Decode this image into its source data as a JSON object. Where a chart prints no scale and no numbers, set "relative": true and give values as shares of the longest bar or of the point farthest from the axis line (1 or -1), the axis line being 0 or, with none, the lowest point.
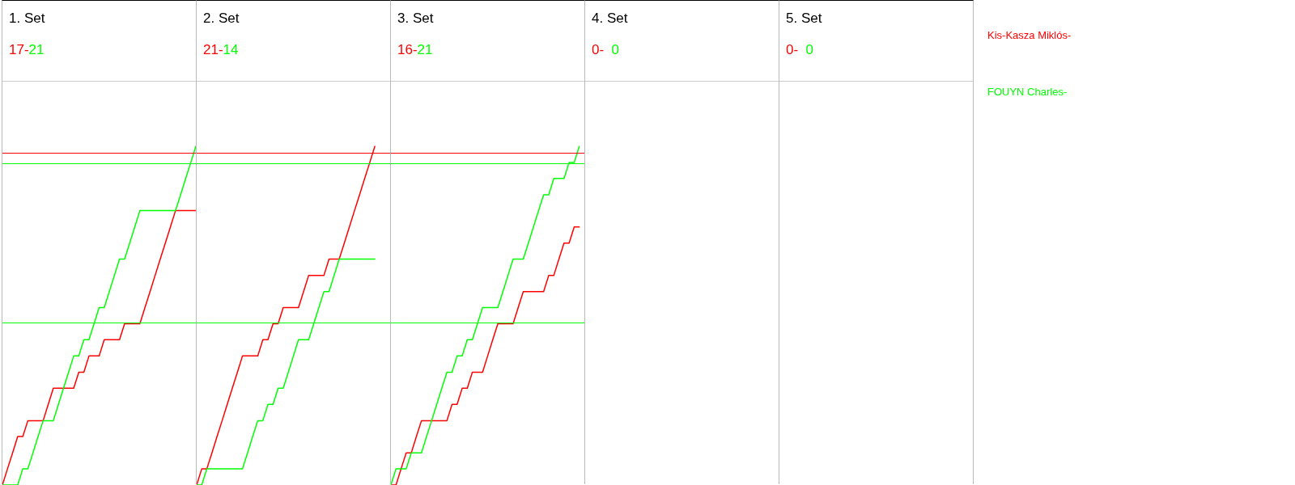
{
  "chart_data": [
    {
      "type": "line",
      "title": "1. Set",
      "subtitle": "17-21",
      "relative": true,
      "legend": "right",
      "categories": [
        null,
        null,
        null,
        null,
        null,
        null,
        null,
        null,
        null,
        null,
        null,
        null,
        null,
        null,
        null,
        null,
        null,
        null,
        null,
        null,
        null,
        null,
        null,
        null,
        null,
        null,
        null,
        null,
        null,
        null,
        null,
        null,
        null,
        null,
        null,
        null,
        null,
        null,
        null
      ],
      "series": [
        {
          "name": "Kis-Kasza Miklós-",
          "color": "#ff0000",
          "values": [
            0,
            0.048,
            0.095,
            0.143,
            0.143,
            0.19,
            0.19,
            0.19,
            0.19,
            0.238,
            0.286,
            0.286,
            0.286,
            0.286,
            0.286,
            0.333,
            0.333,
            0.381,
            0.381,
            0.381,
            0.429,
            0.429,
            0.429,
            0.429,
            0.476,
            0.476,
            0.476,
            0.476,
            0.524,
            0.571,
            0.619,
            0.667,
            0.714,
            0.762,
            0.81,
            0.81,
            0.81,
            0.81,
            0.81
          ]
        },
        {
          "name": "FOUYN Charles-",
          "color": "#00ff00",
          "values": [
            0,
            0,
            0,
            0,
            0.048,
            0.048,
            0.095,
            0.143,
            0.19,
            0.19,
            0.19,
            0.238,
            0.286,
            0.333,
            0.381,
            0.381,
            0.429,
            0.429,
            0.476,
            0.524,
            0.524,
            0.571,
            0.619,
            0.667,
            0.667,
            0.714,
            0.762,
            0.81,
            0.81,
            0.81,
            0.81,
            0.81,
            0.81,
            0.81,
            0.81,
            0.857,
            0.905,
            0.952,
            1
          ]
        }
      ],
      "ref_lines": [
        {
          "axis": "y",
          "value": 0.98,
          "color": "#ff0000"
        },
        {
          "axis": "y",
          "value": 0.952,
          "color": "#00ff00"
        },
        {
          "axis": "y",
          "value": 0.476,
          "color": "#00ff00"
        }
      ]
    },
    {
      "type": "line",
      "title": "2. Set",
      "subtitle": "21-14",
      "relative": true,
      "categories": [
        null,
        null,
        null,
        null,
        null,
        null,
        null,
        null,
        null,
        null,
        null,
        null,
        null,
        null,
        null,
        null,
        null,
        null,
        null,
        null,
        null,
        null,
        null,
        null,
        null,
        null,
        null,
        null,
        null,
        null,
        null,
        null,
        null,
        null,
        null,
        null,
        null,
        null,
        null
      ],
      "series": [
        {
          "color": "#ff0000",
          "values": [
            0,
            0.048,
            0.048,
            0.095,
            0.143,
            0.19,
            0.238,
            0.286,
            0.333,
            0.381,
            0.381,
            0.381,
            0.381,
            0.429,
            0.429,
            0.476,
            0.476,
            0.524,
            0.524,
            0.524,
            0.524,
            0.571,
            0.619,
            0.619,
            0.619,
            0.619,
            0.667,
            0.667,
            0.667,
            0.714,
            0.762,
            0.81,
            0.857,
            0.905,
            0.952,
            1,
            null,
            null,
            null
          ]
        },
        {
          "color": "#00ff00",
          "values": [
            0,
            0,
            0.048,
            0.048,
            0.048,
            0.048,
            0.048,
            0.048,
            0.048,
            0.048,
            0.095,
            0.143,
            0.19,
            0.19,
            0.238,
            0.238,
            0.286,
            0.286,
            0.333,
            0.381,
            0.429,
            0.429,
            0.429,
            0.476,
            0.524,
            0.571,
            0.571,
            0.619,
            0.667,
            0.667,
            0.667,
            0.667,
            0.667,
            0.667,
            0.667,
            0.667,
            null,
            null,
            null
          ]
        }
      ],
      "ref_lines": [
        {
          "axis": "y",
          "value": 0.98,
          "color": "#ff0000"
        },
        {
          "axis": "y",
          "value": 0.952,
          "color": "#00ff00"
        },
        {
          "axis": "y",
          "value": 0.476,
          "color": "#00ff00"
        }
      ]
    },
    {
      "type": "line",
      "title": "3. Set",
      "subtitle": "16-21",
      "relative": true,
      "categories": [
        null,
        null,
        null,
        null,
        null,
        null,
        null,
        null,
        null,
        null,
        null,
        null,
        null,
        null,
        null,
        null,
        null,
        null,
        null,
        null,
        null,
        null,
        null,
        null,
        null,
        null,
        null,
        null,
        null,
        null,
        null,
        null,
        null,
        null,
        null,
        null,
        null,
        null,
        null
      ],
      "series": [
        {
          "color": "#ff0000",
          "values": [
            0,
            0,
            0.048,
            0.095,
            0.095,
            0.143,
            0.19,
            0.19,
            0.19,
            0.19,
            0.19,
            0.19,
            0.238,
            0.238,
            0.286,
            0.286,
            0.333,
            0.333,
            0.333,
            0.381,
            0.429,
            0.476,
            0.476,
            0.476,
            0.476,
            0.524,
            0.571,
            0.571,
            0.571,
            0.571,
            0.571,
            0.619,
            0.619,
            0.667,
            0.714,
            0.714,
            0.762,
            0.762,
            null
          ]
        },
        {
          "color": "#00ff00",
          "values": [
            0,
            0.048,
            0.048,
            0.048,
            0.095,
            0.095,
            0.095,
            0.143,
            0.19,
            0.238,
            0.286,
            0.333,
            0.333,
            0.381,
            0.381,
            0.429,
            0.429,
            0.476,
            0.524,
            0.524,
            0.524,
            0.524,
            0.571,
            0.619,
            0.667,
            0.667,
            0.667,
            0.714,
            0.762,
            0.81,
            0.857,
            0.857,
            0.905,
            0.905,
            0.905,
            0.952,
            0.952,
            1,
            null
          ]
        }
      ],
      "ref_lines": [
        {
          "axis": "y",
          "value": 0.98,
          "color": "#ff0000"
        },
        {
          "axis": "y",
          "value": 0.952,
          "color": "#00ff00"
        },
        {
          "axis": "y",
          "value": 0.476,
          "color": "#00ff00"
        }
      ]
    },
    {
      "type": "other",
      "title": "4. Set",
      "subtitle": "0-  0",
      "colors": [
        "#ff0000",
        "#00ff00"
      ]
    },
    {
      "type": "other",
      "title": "5. Set",
      "subtitle": "0-  0",
      "colors": [
        "#ff0000",
        "#00ff00"
      ]
    }
  ]
}
